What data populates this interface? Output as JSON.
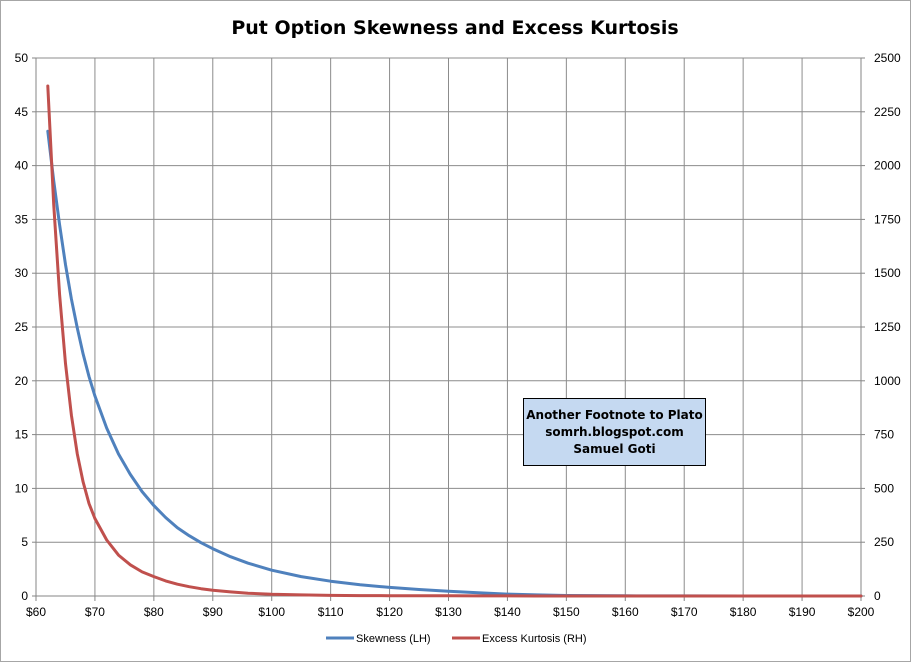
{
  "chart_data": {
    "type": "line",
    "title": "Put Option Skewness and Excess Kurtosis",
    "x": [
      62,
      63,
      64,
      65,
      66,
      67,
      68,
      69,
      70,
      72,
      74,
      76,
      78,
      80,
      82,
      84,
      86,
      88,
      90,
      93,
      96,
      100,
      105,
      110,
      115,
      120,
      125,
      130,
      135,
      140,
      145,
      150,
      160,
      170,
      180,
      190,
      200
    ],
    "x_tick_labels": [
      "$60",
      "$70",
      "$80",
      "$90",
      "$100",
      "$110",
      "$120",
      "$130",
      "$140",
      "$150",
      "$160",
      "$170",
      "$180",
      "$190",
      "$200"
    ],
    "y_tick_labels": [
      "0",
      "5",
      "10",
      "15",
      "20",
      "25",
      "30",
      "35",
      "40",
      "45",
      "50"
    ],
    "y2_tick_labels": [
      "0",
      "250",
      "500",
      "750",
      "1000",
      "1250",
      "1500",
      "1750",
      "2000",
      "2250",
      "2500"
    ],
    "xlim": [
      60,
      200
    ],
    "ylim": [
      0,
      50
    ],
    "y2lim": [
      0,
      2500
    ],
    "grid": true,
    "legend_position": "bottom",
    "series": [
      {
        "name": "Skewness (LH)",
        "axis": "left",
        "color": "#4f81bd",
        "values": [
          43.2,
          38.6,
          34.5,
          30.8,
          27.6,
          24.9,
          22.5,
          20.4,
          18.6,
          15.6,
          13.2,
          11.3,
          9.7,
          8.4,
          7.3,
          6.35,
          5.6,
          4.95,
          4.4,
          3.65,
          3.05,
          2.4,
          1.8,
          1.38,
          1.05,
          0.8,
          0.6,
          0.45,
          0.3,
          0.18,
          0.1,
          0.05,
          0.02,
          0.01,
          0,
          0,
          0
        ]
      },
      {
        "name": "Excess Kurtosis (RH)",
        "axis": "right",
        "color": "#c0504d",
        "values": [
          2370,
          1820,
          1400,
          1080,
          840,
          660,
          530,
          430,
          360,
          260,
          190,
          145,
          112,
          90,
          70,
          55,
          43,
          34,
          27,
          19,
          13,
          8,
          5,
          3,
          2,
          1.5,
          1,
          0.7,
          0.5,
          0.3,
          0.2,
          0.1,
          0,
          0,
          0,
          0,
          0
        ]
      }
    ]
  },
  "annotation": {
    "lines": [
      "Another Footnote to Plato",
      "somrh.blogspot.com",
      "Samuel Goti"
    ]
  }
}
